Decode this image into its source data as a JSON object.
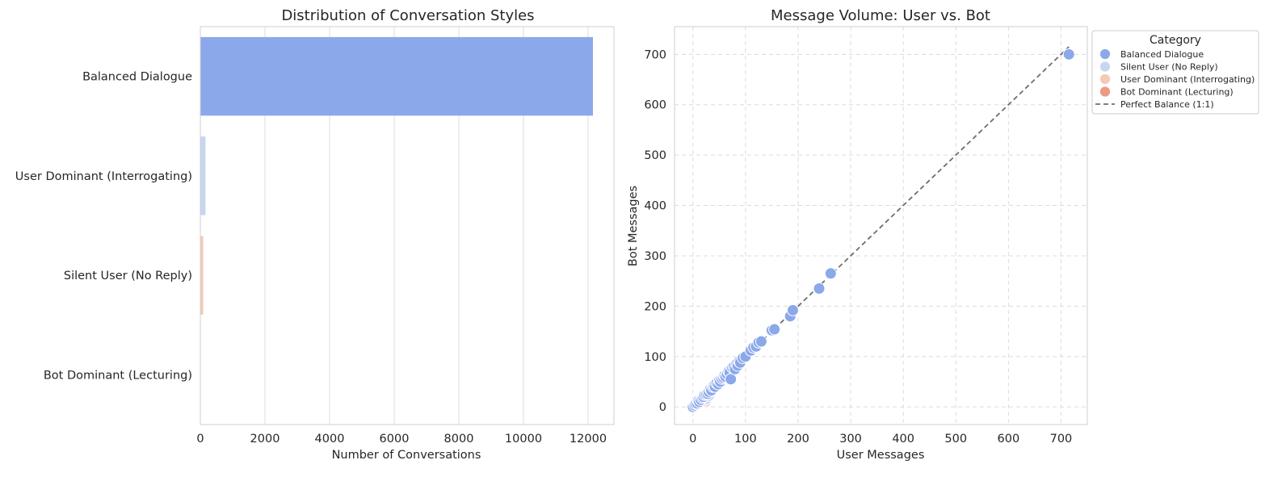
{
  "colors": {
    "balanced": "#8ba8ea",
    "silent": "#c7d6f0",
    "user_dominant": "#f3cbb4",
    "bot_dominant": "#ec9a82",
    "balance_line": "#6e6e6e",
    "grid": "#dcdcdc",
    "spine": "#cfcfcf"
  },
  "chart_data": [
    {
      "type": "bar",
      "orientation": "horizontal",
      "title": "Distribution of Conversation Styles",
      "xlabel": "Number of Conversations",
      "ylabel": "",
      "categories": [
        "Balanced Dialogue",
        "User Dominant (Interrogating)",
        "Silent User (No Reply)",
        "Bot Dominant (Lecturing)"
      ],
      "values": [
        12150,
        160,
        90,
        0
      ],
      "bar_colors": [
        "#8ba8ea",
        "#c7d6f0",
        "#f3cbb4",
        "#ec9a82"
      ],
      "xlim": [
        0,
        12800
      ],
      "xticks": [
        0,
        2000,
        4000,
        6000,
        8000,
        10000,
        12000
      ],
      "grid": "x"
    },
    {
      "type": "scatter",
      "title": "Message Volume: User vs. Bot",
      "xlabel": "User Messages",
      "ylabel": "Bot Messages",
      "xlim": [
        -35,
        750
      ],
      "ylim": [
        -35,
        755
      ],
      "xticks": [
        0,
        100,
        200,
        300,
        400,
        500,
        600,
        700
      ],
      "yticks": [
        0,
        100,
        200,
        300,
        400,
        500,
        600,
        700
      ],
      "grid": "dashed",
      "legend": {
        "title": "Category",
        "placement": "outside-top-right",
        "entries": [
          "Balanced Dialogue",
          "Silent User (No Reply)",
          "User Dominant (Interrogating)",
          "Bot Dominant (Lecturing)",
          "Perfect Balance (1:1)"
        ]
      },
      "reference_line": {
        "name": "Perfect Balance (1:1)",
        "from": [
          0,
          0
        ],
        "to": [
          715,
          715
        ]
      },
      "series": [
        {
          "name": "Balanced Dialogue",
          "points": [
            [
              0,
              0
            ],
            [
              3,
              3
            ],
            [
              5,
              6
            ],
            [
              8,
              7
            ],
            [
              10,
              12
            ],
            [
              12,
              10
            ],
            [
              15,
              14
            ],
            [
              18,
              18
            ],
            [
              20,
              20
            ],
            [
              22,
              24
            ],
            [
              25,
              25
            ],
            [
              28,
              26
            ],
            [
              30,
              30
            ],
            [
              33,
              35
            ],
            [
              35,
              33
            ],
            [
              38,
              40
            ],
            [
              40,
              42
            ],
            [
              42,
              40
            ],
            [
              45,
              47
            ],
            [
              48,
              45
            ],
            [
              50,
              52
            ],
            [
              52,
              50
            ],
            [
              55,
              56
            ],
            [
              58,
              58
            ],
            [
              60,
              62
            ],
            [
              62,
              60
            ],
            [
              65,
              65
            ],
            [
              68,
              70
            ],
            [
              70,
              68
            ],
            [
              72,
              55
            ],
            [
              75,
              78
            ],
            [
              78,
              80
            ],
            [
              80,
              75
            ],
            [
              83,
              85
            ],
            [
              85,
              82
            ],
            [
              88,
              90
            ],
            [
              90,
              88
            ],
            [
              95,
              97
            ],
            [
              100,
              100
            ],
            [
              110,
              112
            ],
            [
              115,
              118
            ],
            [
              120,
              120
            ],
            [
              125,
              128
            ],
            [
              130,
              130
            ],
            [
              150,
              152
            ],
            [
              155,
              154
            ],
            [
              185,
              180
            ],
            [
              190,
              192
            ],
            [
              240,
              235
            ],
            [
              262,
              265
            ],
            [
              715,
              700
            ]
          ]
        },
        {
          "name": "Silent User (No Reply)",
          "points": [
            [
              2,
              1
            ],
            [
              6,
              4
            ],
            [
              10,
              6
            ],
            [
              14,
              9
            ],
            [
              20,
              12
            ],
            [
              26,
              16
            ],
            [
              30,
              22
            ]
          ]
        },
        {
          "name": "User Dominant (Interrogating)",
          "points": [
            [
              4,
              2
            ],
            [
              9,
              5
            ],
            [
              16,
              8
            ],
            [
              24,
              10
            ]
          ]
        },
        {
          "name": "Bot Dominant (Lecturing)",
          "points": []
        }
      ]
    }
  ]
}
